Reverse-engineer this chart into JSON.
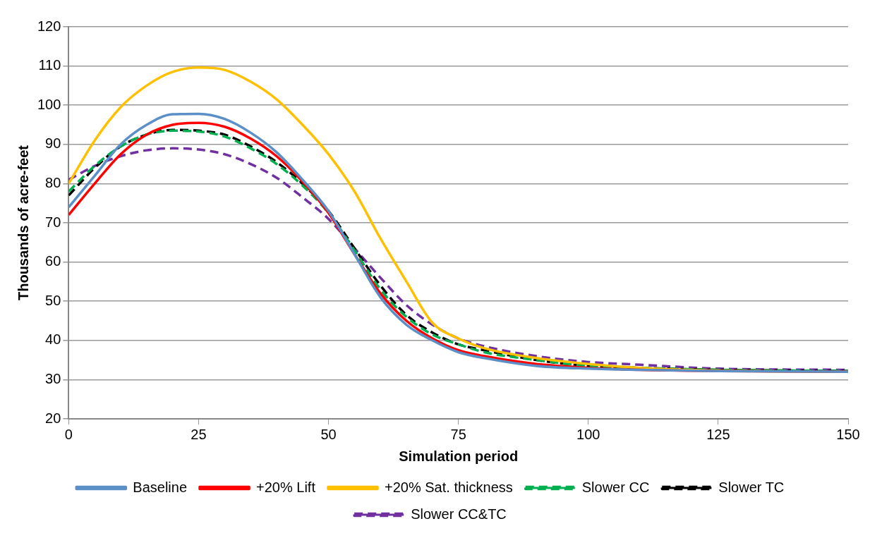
{
  "chart_data": {
    "type": "line",
    "xlabel": "Simulation period",
    "ylabel": "Thousands of acre-feet",
    "x": [
      0,
      5,
      10,
      15,
      20,
      25,
      30,
      35,
      40,
      45,
      50,
      55,
      60,
      65,
      70,
      75,
      80,
      90,
      100,
      110,
      125,
      150
    ],
    "xlim": [
      0,
      150
    ],
    "xticks": [
      0,
      25,
      50,
      75,
      100,
      125,
      150
    ],
    "ylim": [
      20,
      120
    ],
    "yticks": [
      20,
      30,
      40,
      50,
      60,
      70,
      80,
      90,
      100,
      110,
      120
    ],
    "grid": "y",
    "legend": "bottom",
    "marker": "none",
    "series": [
      {
        "name": "Baseline",
        "color": "#5b8fc7",
        "line_style": "solid",
        "values": [
          74,
          82,
          90,
          95,
          97.7,
          97.8,
          96.5,
          93,
          88,
          81,
          73,
          62,
          51,
          44,
          40,
          37,
          35.5,
          33.5,
          32.8,
          32.5,
          32.2,
          32
        ]
      },
      {
        "name": "+20% Lift",
        "color": "#ff0000",
        "line_style": "solid",
        "values": [
          72,
          80,
          87.5,
          92.5,
          95,
          95.5,
          94.5,
          91.5,
          87,
          80.5,
          72.5,
          62,
          52,
          45,
          40.5,
          37.5,
          36,
          34,
          33,
          32.5,
          32.2,
          32
        ]
      },
      {
        "name": "+20% Sat. thickness",
        "color": "#ffc000",
        "line_style": "solid",
        "values": [
          80,
          91,
          99.5,
          105,
          108.5,
          109.6,
          109,
          106,
          101.5,
          95,
          87.5,
          78,
          66,
          55,
          44.5,
          40.5,
          38,
          35.5,
          34,
          33,
          32.3,
          32
        ]
      },
      {
        "name": "Slower CC",
        "color": "#00b050",
        "line_style": "dashed",
        "values": [
          78,
          84.5,
          89.5,
          92.5,
          93.5,
          93.3,
          92,
          89,
          85,
          79.5,
          72.5,
          63,
          53,
          46,
          41.5,
          39,
          37,
          35,
          33.5,
          33,
          32.5,
          32.2
        ]
      },
      {
        "name": "Slower TC",
        "color": "#000000",
        "line_style": "dashed",
        "values": [
          77,
          84,
          89.5,
          92.5,
          93.7,
          93.5,
          92.5,
          89.5,
          85.5,
          80,
          73,
          63.5,
          54,
          46.5,
          42,
          39,
          37.5,
          35,
          33.5,
          33,
          32.5,
          32.2
        ]
      },
      {
        "name": "Slower CC&TC",
        "color": "#7030a0",
        "line_style": "dashed",
        "values": [
          81,
          84.5,
          87,
          88.5,
          89,
          88.7,
          87.5,
          85,
          81.5,
          76.5,
          71,
          63.5,
          56,
          49,
          44,
          40.5,
          38.5,
          36,
          34.5,
          33.8,
          32.8,
          32.5
        ]
      }
    ]
  }
}
